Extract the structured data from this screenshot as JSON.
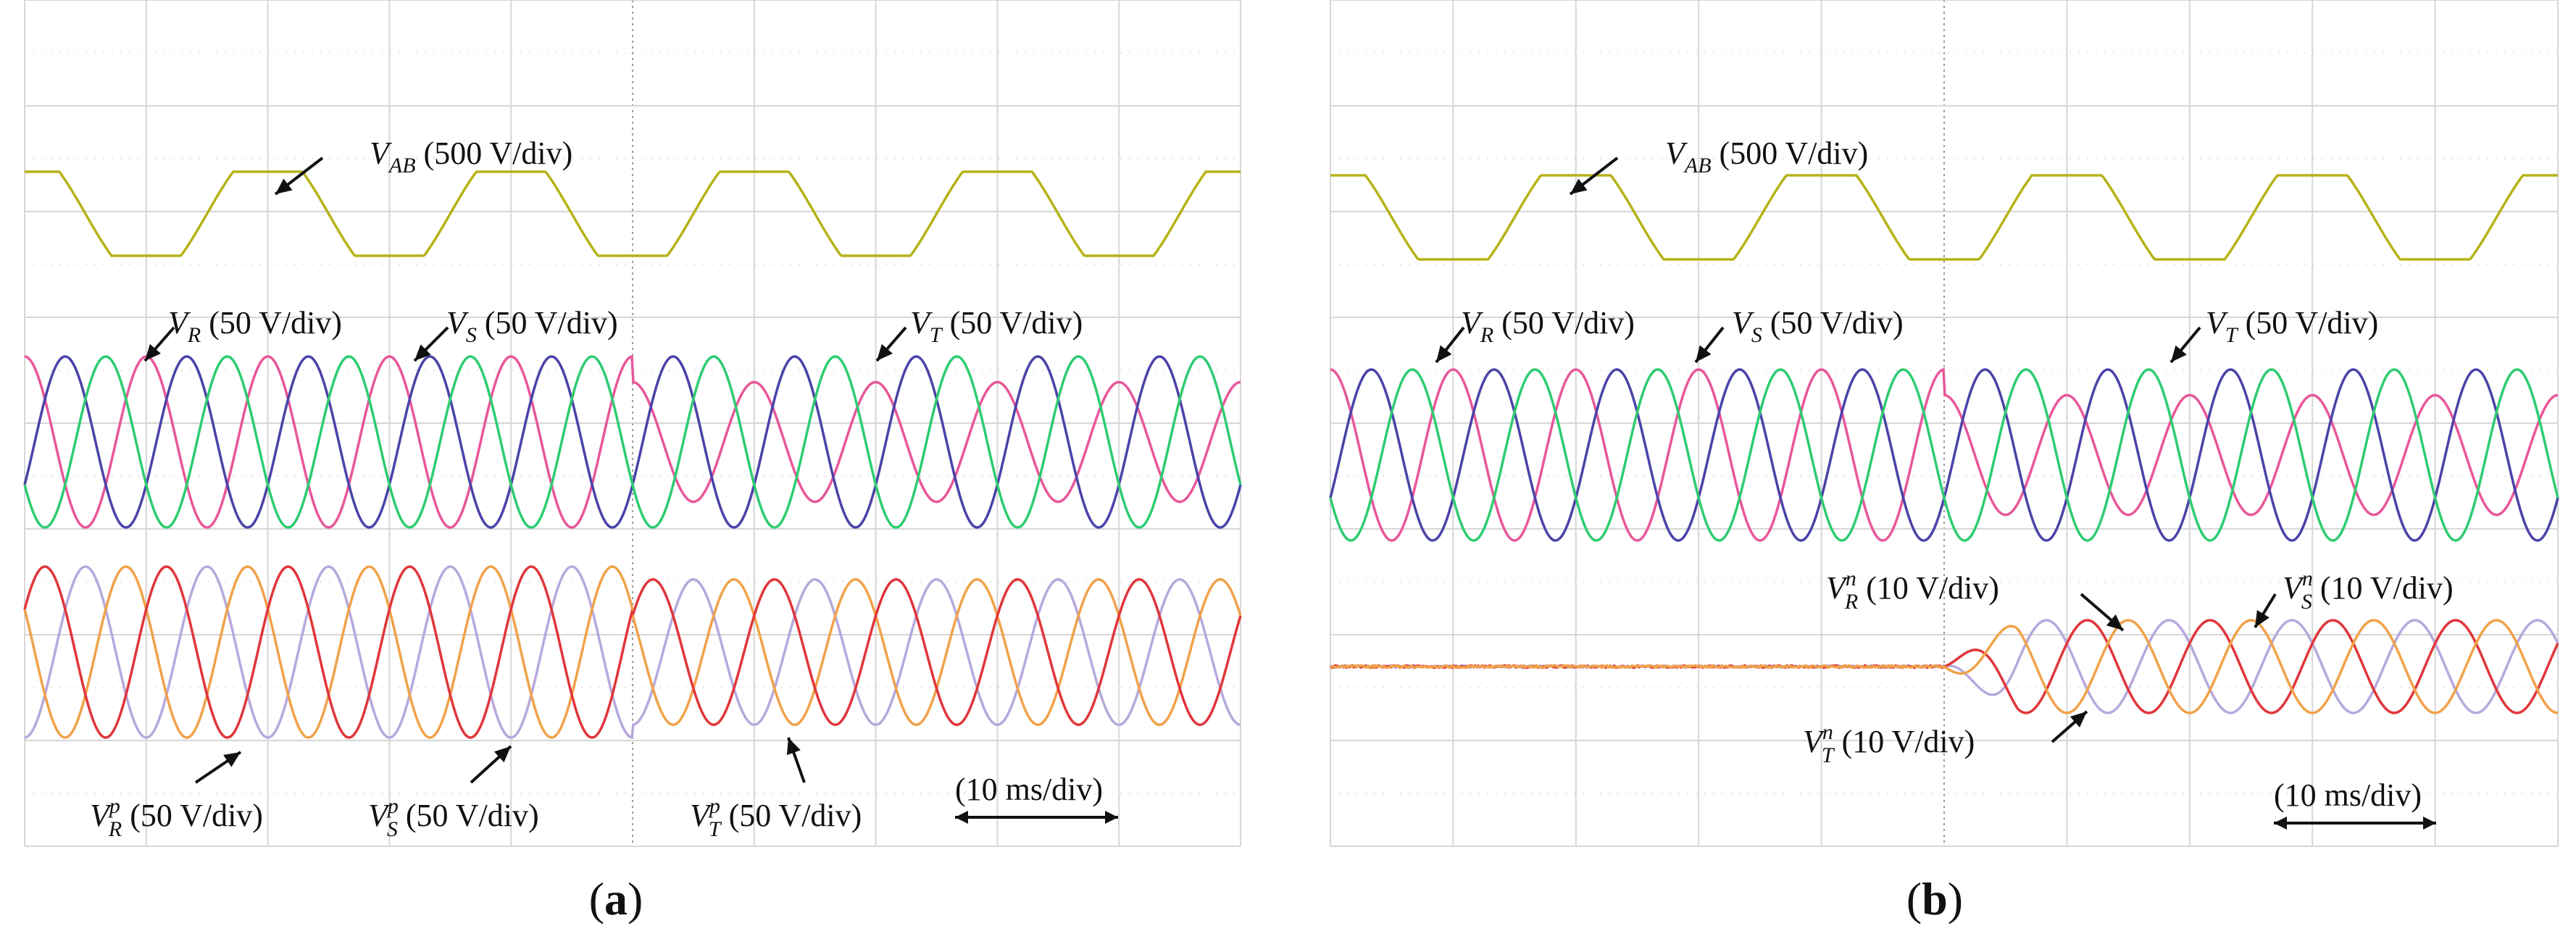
{
  "chart_data": [
    {
      "type": "line",
      "panel": "a",
      "caption": {
        "open": "(",
        "letter": "a",
        "close": ")"
      },
      "time_scale": "(10 ms/div)",
      "grid": true,
      "series": [
        {
          "name": "VAB",
          "label": {
            "base": "V",
            "sub": "AB",
            "sup": "",
            "scale": "(500 V/div)"
          },
          "color": "#b5b318",
          "waveform": "trapezoid",
          "cycles_per_div": 0.5,
          "amplitude": 0.6,
          "group": "top"
        },
        {
          "name": "VR",
          "label": {
            "base": "V",
            "sub": "R",
            "sup": "",
            "scale": "(50 V/div)"
          },
          "color": "#e8579a",
          "waveform": "sine",
          "cycles_per_div": 1,
          "amplitude_before": 1.0,
          "amplitude_after": 0.7,
          "group": "middle"
        },
        {
          "name": "VS",
          "label": {
            "base": "V",
            "sub": "S",
            "sup": "",
            "scale": "(50 V/div)"
          },
          "color": "#4a43a8",
          "waveform": "sine",
          "cycles_per_div": 1,
          "amplitude_before": 1.0,
          "amplitude_after": 1.0,
          "group": "middle"
        },
        {
          "name": "VT",
          "label": {
            "base": "V",
            "sub": "T",
            "sup": "",
            "scale": "(50 V/div)"
          },
          "color": "#2ecc71",
          "waveform": "sine",
          "cycles_per_div": 1,
          "amplitude_before": 1.0,
          "amplitude_after": 1.0,
          "group": "middle"
        },
        {
          "name": "VRp",
          "label": {
            "base": "V",
            "sub": "R",
            "sup": "p",
            "scale": "(50 V/div)"
          },
          "color": "#b7a8dd",
          "waveform": "sine",
          "cycles_per_div": 1,
          "amplitude_before": 1.0,
          "amplitude_after": 0.85,
          "group": "bottom"
        },
        {
          "name": "VSp",
          "label": {
            "base": "V",
            "sub": "S",
            "sup": "p",
            "scale": "(50 V/div)"
          },
          "color": "#f0a24a",
          "waveform": "sine",
          "cycles_per_div": 1,
          "amplitude_before": 1.0,
          "amplitude_after": 0.85,
          "group": "bottom"
        },
        {
          "name": "VTp",
          "label": {
            "base": "V",
            "sub": "T",
            "sup": "p",
            "scale": "(50 V/div)"
          },
          "color": "#e0363b",
          "waveform": "sine",
          "cycles_per_div": 1,
          "amplitude_before": 1.0,
          "amplitude_after": 0.85,
          "group": "bottom"
        }
      ]
    },
    {
      "type": "line",
      "panel": "b",
      "caption": {
        "open": "(",
        "letter": "b",
        "close": ")"
      },
      "time_scale": "(10 ms/div)",
      "grid": true,
      "series": [
        {
          "name": "VAB",
          "label": {
            "base": "V",
            "sub": "AB",
            "sup": "",
            "scale": "(500 V/div)"
          },
          "color": "#b5b318",
          "waveform": "trapezoid",
          "cycles_per_div": 0.5,
          "amplitude": 0.6,
          "group": "top"
        },
        {
          "name": "VR",
          "label": {
            "base": "V",
            "sub": "R",
            "sup": "",
            "scale": "(50 V/div)"
          },
          "color": "#e8579a",
          "waveform": "sine",
          "cycles_per_div": 1,
          "amplitude_before": 1.0,
          "amplitude_after": 0.7,
          "group": "middle"
        },
        {
          "name": "VS",
          "label": {
            "base": "V",
            "sub": "S",
            "sup": "",
            "scale": "(50 V/div)"
          },
          "color": "#4a43a8",
          "waveform": "sine",
          "cycles_per_div": 1,
          "amplitude_before": 1.0,
          "amplitude_after": 1.0,
          "group": "middle"
        },
        {
          "name": "VT",
          "label": {
            "base": "V",
            "sub": "T",
            "sup": "",
            "scale": "(50 V/div)"
          },
          "color": "#2ecc71",
          "waveform": "sine",
          "cycles_per_div": 1,
          "amplitude_before": 1.0,
          "amplitude_after": 1.0,
          "group": "middle"
        },
        {
          "name": "VRn",
          "label": {
            "base": "V",
            "sub": "R",
            "sup": "n",
            "scale": "(10 V/div)"
          },
          "color": "#b7a8dd",
          "waveform": "sine",
          "cycles_per_div": 1,
          "amplitude_before": 0.0,
          "amplitude_after": 0.55,
          "group": "bottom"
        },
        {
          "name": "VSn",
          "label": {
            "base": "V",
            "sub": "S",
            "sup": "n",
            "scale": "(10 V/div)"
          },
          "color": "#e0363b",
          "waveform": "sine",
          "cycles_per_div": 1,
          "amplitude_before": 0.0,
          "amplitude_after": 0.55,
          "group": "bottom"
        },
        {
          "name": "VTn",
          "label": {
            "base": "V",
            "sub": "T",
            "sup": "n",
            "scale": "(10 V/div)"
          },
          "color": "#f0a24a",
          "waveform": "sine",
          "cycles_per_div": 1,
          "amplitude_before": 0.0,
          "amplitude_after": 0.55,
          "group": "bottom"
        }
      ]
    }
  ]
}
